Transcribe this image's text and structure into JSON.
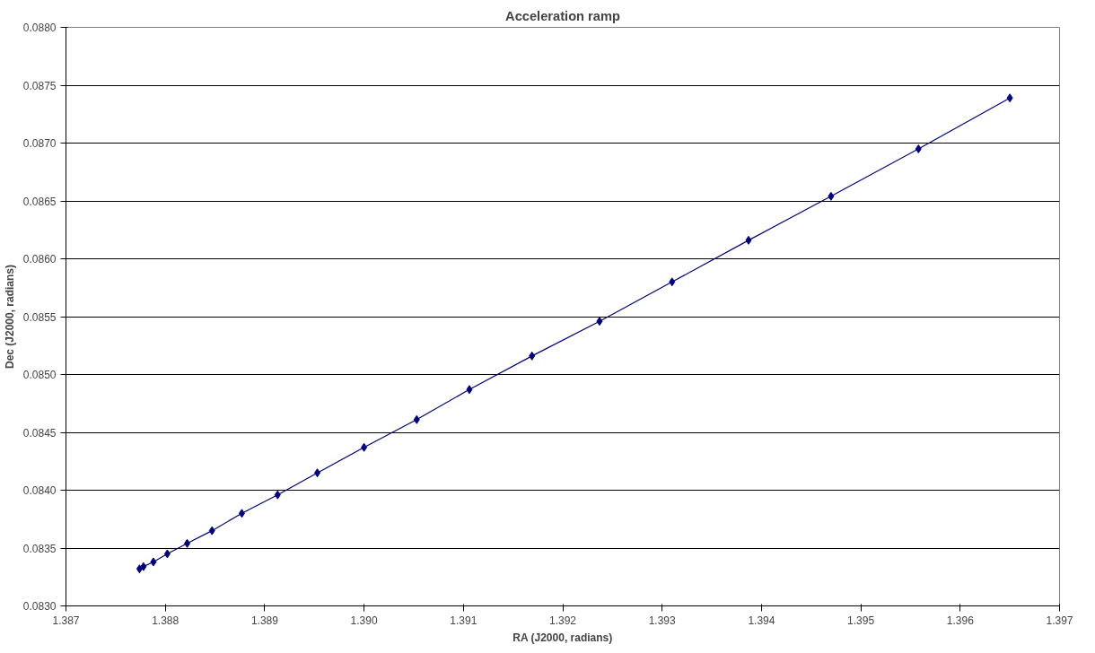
{
  "chart_data": {
    "type": "line",
    "title": "Acceleration ramp",
    "xlabel": "RA (J2000, radians)",
    "ylabel": "Dec (J2000, radians)",
    "x": [
      1.38774,
      1.38778,
      1.38788,
      1.38802,
      1.38822,
      1.38847,
      1.38877,
      1.38913,
      1.38953,
      1.39,
      1.39053,
      1.39106,
      1.39169,
      1.39237,
      1.3931,
      1.39387,
      1.3947,
      1.39558,
      1.3965
    ],
    "series": [
      {
        "color": "#000080",
        "values": [
          0.08332,
          0.08334,
          0.08338,
          0.08345,
          0.08354,
          0.08365,
          0.0838,
          0.08396,
          0.08415,
          0.08437,
          0.08461,
          0.08487,
          0.08516,
          0.08546,
          0.0858,
          0.08616,
          0.08654,
          0.08695,
          0.08739
        ]
      }
    ],
    "xlim": [
      1.387,
      1.397
    ],
    "ylim": [
      0.083,
      0.088
    ],
    "xticks": [
      {
        "value": 1.387,
        "label": "1.387"
      },
      {
        "value": 1.388,
        "label": "1.388"
      },
      {
        "value": 1.389,
        "label": "1.389"
      },
      {
        "value": 1.39,
        "label": "1.390"
      },
      {
        "value": 1.391,
        "label": "1.391"
      },
      {
        "value": 1.392,
        "label": "1.392"
      },
      {
        "value": 1.393,
        "label": "1.393"
      },
      {
        "value": 1.394,
        "label": "1.394"
      },
      {
        "value": 1.395,
        "label": "1.395"
      },
      {
        "value": 1.396,
        "label": "1.396"
      },
      {
        "value": 1.397,
        "label": "1.397"
      }
    ],
    "yticks": [
      {
        "value": 0.083,
        "label": "0.0830"
      },
      {
        "value": 0.0835,
        "label": "0.0835"
      },
      {
        "value": 0.084,
        "label": "0.0840"
      },
      {
        "value": 0.0845,
        "label": "0.0845"
      },
      {
        "value": 0.085,
        "label": "0.0850"
      },
      {
        "value": 0.0855,
        "label": "0.0855"
      },
      {
        "value": 0.086,
        "label": "0.0860"
      },
      {
        "value": 0.0865,
        "label": "0.0865"
      },
      {
        "value": 0.087,
        "label": "0.0870"
      },
      {
        "value": 0.0875,
        "label": "0.0875"
      },
      {
        "value": 0.088,
        "label": "0.0880"
      }
    ],
    "grid": "y",
    "marker": "diamond",
    "line_style": "solid"
  }
}
